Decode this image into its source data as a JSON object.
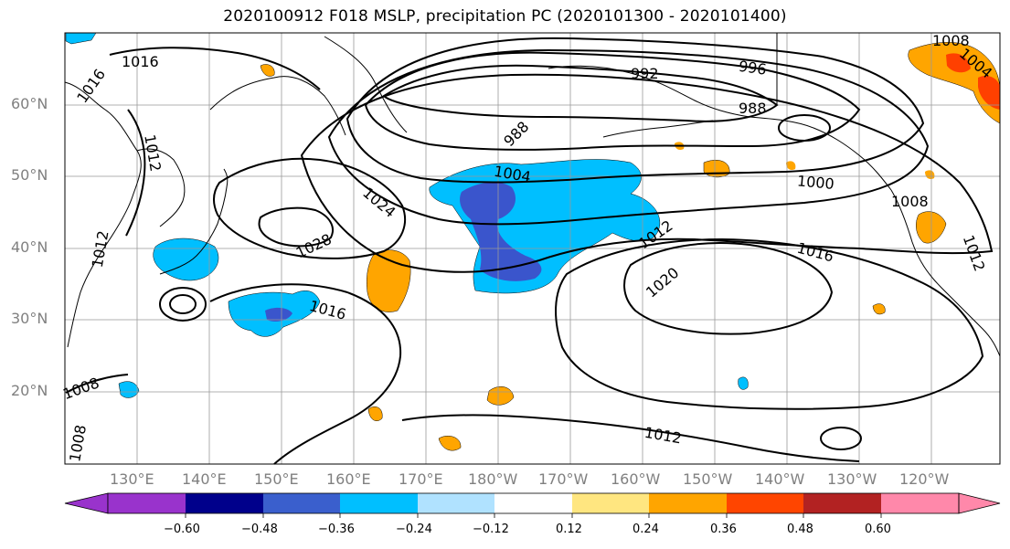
{
  "title": "2020100912 F018 MSLP, precipitation PC (2020101300 - 2020101400)",
  "map": {
    "lat_labels": [
      "60°N",
      "50°N",
      "40°N",
      "30°N",
      "20°N"
    ],
    "lon_labels": [
      "130°E",
      "140°E",
      "150°E",
      "160°E",
      "170°E",
      "180°W",
      "170°W",
      "160°W",
      "150°W",
      "140°W",
      "130°W",
      "120°W"
    ],
    "isobar_labels": [
      "1016",
      "1016",
      "1012",
      "992",
      "996",
      "988",
      "988",
      "1004",
      "1000",
      "1008",
      "1024",
      "1028",
      "1016",
      "1012",
      "1016",
      "1020",
      "1012",
      "1012",
      "1008",
      "1004",
      "1008",
      "1012",
      "1008"
    ],
    "precip_colors": {
      "strong_negative": "#3a55cc",
      "negative": "#00bfff",
      "weak_positive": "#ffe680",
      "positive": "#ffa500",
      "strong_positive": "#ff4000"
    }
  },
  "colorbar": {
    "ticks": [
      "−0.60",
      "−0.48",
      "−0.36",
      "−0.24",
      "−0.12",
      "0.12",
      "0.24",
      "0.36",
      "0.48",
      "0.60"
    ],
    "colors": [
      "#9933cc",
      "#00008b",
      "#3a5fcd",
      "#00bfff",
      "#b0e2ff",
      "#ffffff",
      "#ffe680",
      "#ffa500",
      "#ff4500",
      "#b22222",
      "#ff88aa"
    ]
  }
}
